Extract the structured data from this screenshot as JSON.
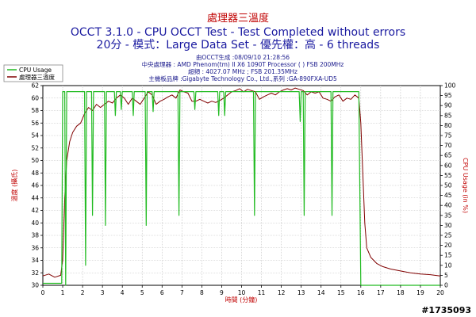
{
  "chart_data": {
    "type": "line",
    "title": "處理器三溫度",
    "subtitle_1": "OCCT 3.1.0 - CPU OCCT Test - Test Completed without errors",
    "subtitle_2": "20分 - 模式：Large Data Set - 優先權：高 - 6 threads",
    "info_lines": [
      "由OCCT生成 :08/09/10 21:28:56",
      "中央處理器 : AMD Phenom(tm) II X6 1090T Processor ( ) FSB 200MHz",
      "超頻 : 4027.07 MHz ; FSB 201.35MHz",
      "主機板品牌 :Gigabyte Technology Co., Ltd.,系列 :GA-890FXA-UD5"
    ],
    "xlabel": "時間 (分鐘)",
    "ylabel_left": "溫度 (攝氏)",
    "ylabel_right": "CPU Usage (in %)",
    "xlim": [
      0,
      20
    ],
    "ylim_left": [
      30,
      62
    ],
    "ylim_right": [
      0,
      100
    ],
    "x_ticks": [
      "0",
      "1",
      "2",
      "3",
      "4",
      "5",
      "6",
      "7",
      "8",
      "9",
      "10",
      "11",
      "12",
      "13",
      "14",
      "15",
      "16",
      "17",
      "18",
      "19",
      "20"
    ],
    "y_ticks_left": [
      "30",
      "32",
      "34",
      "36",
      "38",
      "40",
      "42",
      "44",
      "46",
      "48",
      "50",
      "52",
      "54",
      "56",
      "58",
      "60",
      "62"
    ],
    "y_ticks_right": [
      "0",
      "5",
      "10",
      "15",
      "20",
      "25",
      "30",
      "35",
      "40",
      "45",
      "50",
      "55",
      "60",
      "65",
      "70",
      "75",
      "80",
      "85",
      "90",
      "95",
      "100"
    ],
    "legend": [
      {
        "name": "CPU Usage",
        "color": "#22bb22"
      },
      {
        "name": "處理器三溫度",
        "color": "#800000"
      }
    ],
    "series": [
      {
        "name": "處理器三溫度",
        "axis": "left",
        "color": "#800000",
        "points": [
          [
            0,
            31.5
          ],
          [
            0.3,
            31.8
          ],
          [
            0.6,
            31.3
          ],
          [
            0.9,
            31.6
          ],
          [
            1.0,
            34
          ],
          [
            1.1,
            44
          ],
          [
            1.2,
            50
          ],
          [
            1.35,
            53
          ],
          [
            1.5,
            54.5
          ],
          [
            1.7,
            55.5
          ],
          [
            1.9,
            56
          ],
          [
            2.1,
            57.5
          ],
          [
            2.3,
            58.5
          ],
          [
            2.5,
            58
          ],
          [
            2.7,
            59
          ],
          [
            2.9,
            58.5
          ],
          [
            3.1,
            59
          ],
          [
            3.3,
            59.5
          ],
          [
            3.5,
            59.2
          ],
          [
            3.7,
            60
          ],
          [
            3.9,
            60.5
          ],
          [
            4.1,
            60
          ],
          [
            4.3,
            59
          ],
          [
            4.5,
            60
          ],
          [
            4.7,
            59.5
          ],
          [
            4.9,
            59
          ],
          [
            5.1,
            60
          ],
          [
            5.3,
            61
          ],
          [
            5.5,
            60.5
          ],
          [
            5.7,
            59
          ],
          [
            5.9,
            59.5
          ],
          [
            6.1,
            59.8
          ],
          [
            6.3,
            60.2
          ],
          [
            6.5,
            60.5
          ],
          [
            6.7,
            60
          ],
          [
            6.9,
            61.3
          ],
          [
            7.1,
            61
          ],
          [
            7.3,
            60.8
          ],
          [
            7.5,
            59.5
          ],
          [
            7.7,
            59.5
          ],
          [
            7.9,
            59.8
          ],
          [
            8.1,
            59.5
          ],
          [
            8.3,
            59.2
          ],
          [
            8.5,
            59.5
          ],
          [
            8.7,
            59.3
          ],
          [
            8.9,
            59.6
          ],
          [
            9.1,
            60
          ],
          [
            9.3,
            60.5
          ],
          [
            9.5,
            61
          ],
          [
            9.7,
            61.2
          ],
          [
            9.9,
            61.5
          ],
          [
            10.1,
            61
          ],
          [
            10.3,
            61.4
          ],
          [
            10.5,
            61.2
          ],
          [
            10.7,
            61
          ],
          [
            10.9,
            59.8
          ],
          [
            11.1,
            60.2
          ],
          [
            11.3,
            60.5
          ],
          [
            11.5,
            60.8
          ],
          [
            11.7,
            60.5
          ],
          [
            11.9,
            61
          ],
          [
            12.1,
            61.3
          ],
          [
            12.3,
            61.5
          ],
          [
            12.5,
            61.3
          ],
          [
            12.7,
            61.6
          ],
          [
            12.9,
            61.4
          ],
          [
            13.1,
            61.2
          ],
          [
            13.3,
            60.5
          ],
          [
            13.5,
            61
          ],
          [
            13.7,
            60.8
          ],
          [
            13.9,
            61
          ],
          [
            14.1,
            60
          ],
          [
            14.3,
            59.8
          ],
          [
            14.5,
            59.5
          ],
          [
            14.7,
            60.2
          ],
          [
            14.9,
            60.5
          ],
          [
            15.1,
            59.5
          ],
          [
            15.3,
            60
          ],
          [
            15.5,
            59.8
          ],
          [
            15.7,
            60.5
          ],
          [
            15.9,
            60
          ],
          [
            16.0,
            56
          ],
          [
            16.1,
            48
          ],
          [
            16.2,
            40
          ],
          [
            16.3,
            36
          ],
          [
            16.5,
            34.5
          ],
          [
            16.8,
            33.5
          ],
          [
            17.1,
            33
          ],
          [
            17.5,
            32.6
          ],
          [
            18,
            32.3
          ],
          [
            18.5,
            32
          ],
          [
            19,
            31.8
          ],
          [
            19.5,
            31.7
          ],
          [
            20,
            31.5
          ]
        ]
      },
      {
        "name": "CPU Usage",
        "axis": "right",
        "color": "#22bb22",
        "points": [
          [
            0,
            1
          ],
          [
            0.95,
            1
          ],
          [
            1.0,
            97
          ],
          [
            1.1,
            97
          ],
          [
            1.15,
            0
          ],
          [
            1.2,
            97
          ],
          [
            2.1,
            97
          ],
          [
            2.15,
            10
          ],
          [
            2.2,
            97
          ],
          [
            2.45,
            97
          ],
          [
            2.5,
            35
          ],
          [
            2.55,
            97
          ],
          [
            3.1,
            97
          ],
          [
            3.15,
            30
          ],
          [
            3.2,
            97
          ],
          [
            3.6,
            97
          ],
          [
            3.65,
            85
          ],
          [
            3.7,
            97
          ],
          [
            3.9,
            97
          ],
          [
            3.95,
            88
          ],
          [
            4.0,
            97
          ],
          [
            4.5,
            97
          ],
          [
            4.55,
            85
          ],
          [
            4.6,
            97
          ],
          [
            5.15,
            97
          ],
          [
            5.2,
            30
          ],
          [
            5.25,
            97
          ],
          [
            5.5,
            97
          ],
          [
            5.55,
            87
          ],
          [
            5.6,
            97
          ],
          [
            6.8,
            97
          ],
          [
            6.85,
            35
          ],
          [
            6.9,
            97
          ],
          [
            7.6,
            97
          ],
          [
            7.65,
            88
          ],
          [
            7.7,
            97
          ],
          [
            8.8,
            97
          ],
          [
            8.85,
            85
          ],
          [
            8.9,
            97
          ],
          [
            9.1,
            97
          ],
          [
            9.15,
            85
          ],
          [
            9.2,
            97
          ],
          [
            10.6,
            97
          ],
          [
            10.65,
            35
          ],
          [
            10.7,
            97
          ],
          [
            12.9,
            97
          ],
          [
            12.95,
            82
          ],
          [
            13.0,
            97
          ],
          [
            13.1,
            97
          ],
          [
            13.15,
            35
          ],
          [
            13.2,
            97
          ],
          [
            14.5,
            97
          ],
          [
            14.55,
            35
          ],
          [
            14.6,
            97
          ],
          [
            15.9,
            97
          ],
          [
            16.0,
            0
          ],
          [
            16.05,
            0
          ],
          [
            20,
            0
          ]
        ]
      }
    ],
    "watermark": "#1735093"
  }
}
